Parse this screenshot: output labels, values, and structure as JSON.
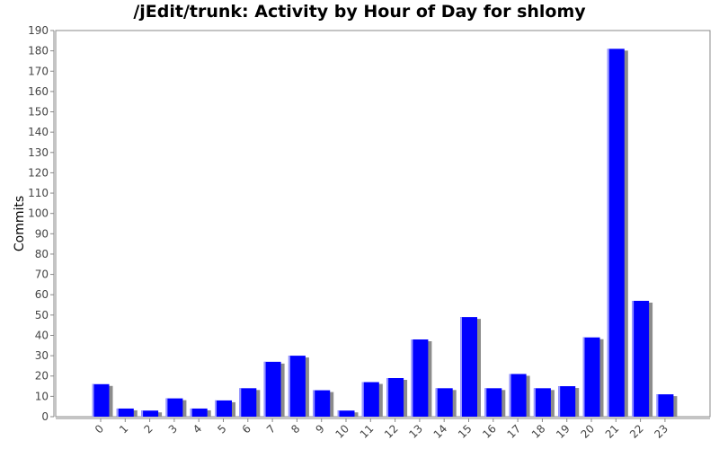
{
  "chart_data": {
    "type": "bar",
    "title": "/jEdit/trunk: Activity by Hour of Day for shlomy",
    "xlabel": "",
    "ylabel": "Commits",
    "categories": [
      "0",
      "1",
      "2",
      "3",
      "4",
      "5",
      "6",
      "7",
      "8",
      "9",
      "10",
      "11",
      "12",
      "13",
      "14",
      "15",
      "16",
      "17",
      "18",
      "19",
      "20",
      "21",
      "22",
      "23"
    ],
    "values": [
      16,
      4,
      3,
      9,
      4,
      8,
      14,
      27,
      30,
      13,
      3,
      17,
      19,
      38,
      14,
      49,
      14,
      21,
      14,
      15,
      39,
      181,
      57,
      11
    ],
    "ylim": [
      0,
      190
    ],
    "yticks": [
      0,
      10,
      20,
      30,
      40,
      50,
      60,
      70,
      80,
      90,
      100,
      110,
      120,
      130,
      140,
      150,
      160,
      170,
      180,
      190
    ],
    "grid": false,
    "legend": "none",
    "colors": {
      "bar": "#0000ff",
      "bar_highlight": "#9999ff",
      "shadow": "#8c8c8c",
      "axis": "#888888"
    }
  }
}
